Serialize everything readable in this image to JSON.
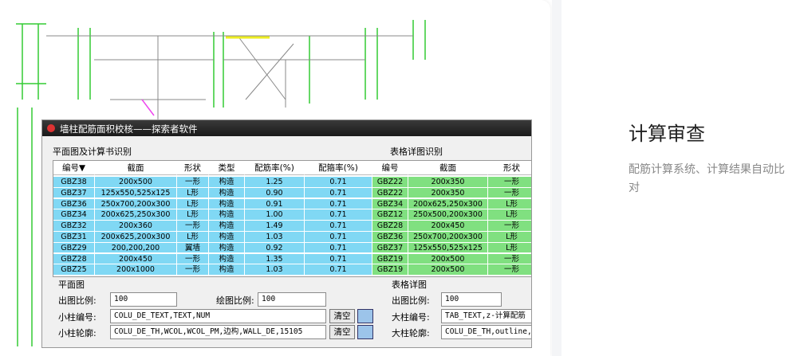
{
  "card": {
    "dialog": {
      "title": "墙柱配筋面积校核——探索者软件",
      "left_section": "平面图及计算书识别",
      "right_section": "表格详图识别",
      "table": {
        "headers": [
          "编号▼",
          "截面",
          "形状",
          "类型",
          "配筋率(%)",
          "配箍率(%)",
          "编号",
          "截面",
          "形状"
        ],
        "rows": [
          [
            "GBZ38",
            "200x500",
            "一形",
            "构造",
            "1.25",
            "0.71",
            "GBZ22",
            "200x350",
            "一形"
          ],
          [
            "GBZ37",
            "125x550,525x125",
            "L形",
            "构造",
            "0.90",
            "0.71",
            "GBZ22",
            "200x350",
            "一形"
          ],
          [
            "GBZ36",
            "250x700,200x300",
            "L形",
            "构造",
            "0.91",
            "0.71",
            "GBZ34",
            "200x625,250x300",
            "L形"
          ],
          [
            "GBZ34",
            "200x625,250x300",
            "L形",
            "构造",
            "1.00",
            "0.71",
            "GBZ12",
            "250x500,200x300",
            "L形"
          ],
          [
            "GBZ32",
            "200x360",
            "一形",
            "构造",
            "1.49",
            "0.71",
            "GBZ28",
            "200x450",
            "一形"
          ],
          [
            "GBZ31",
            "200x625,200x300",
            "L形",
            "构造",
            "1.03",
            "0.71",
            "GBZ36",
            "250x700,200x300",
            "L形"
          ],
          [
            "GBZ29",
            "200,200,200",
            "翼墙",
            "构造",
            "0.92",
            "0.71",
            "GBZ37",
            "125x550,525x125",
            "L形"
          ],
          [
            "GBZ28",
            "200x450",
            "一形",
            "构造",
            "1.35",
            "0.71",
            "GBZ19",
            "200x500",
            "一形"
          ],
          [
            "GBZ25",
            "200x1000",
            "一形",
            "构造",
            "1.03",
            "0.71",
            "GBZ19",
            "200x500",
            "一形"
          ]
        ]
      },
      "plan": {
        "group": "平面图",
        "scale_label": "出图比例:",
        "scale": "100",
        "draw_scale_label": "绘图比例:",
        "draw_scale": "100",
        "small_id_label": "小柱编号:",
        "small_id": "COLU_DE_TEXT,TEXT,NUM",
        "small_outline_label": "小柱轮廓:",
        "small_outline": "COLU_DE_TH,WCOL,WCOL_PM,边构,WALL_DE,15105",
        "clear": "清空"
      },
      "detail": {
        "group": "表格详图",
        "scale_label": "出图比例:",
        "scale": "100",
        "big_id_label": "大柱编号:",
        "big_id": "TAB_TEXT,z-计算配筋",
        "big_outline_label": "大柱轮廓:",
        "big_outline": "COLU_DE_TH,outline,%"
      }
    }
  },
  "feature": {
    "title": "计算审查",
    "description": "配筋计算系统、计算结果自动比对"
  }
}
